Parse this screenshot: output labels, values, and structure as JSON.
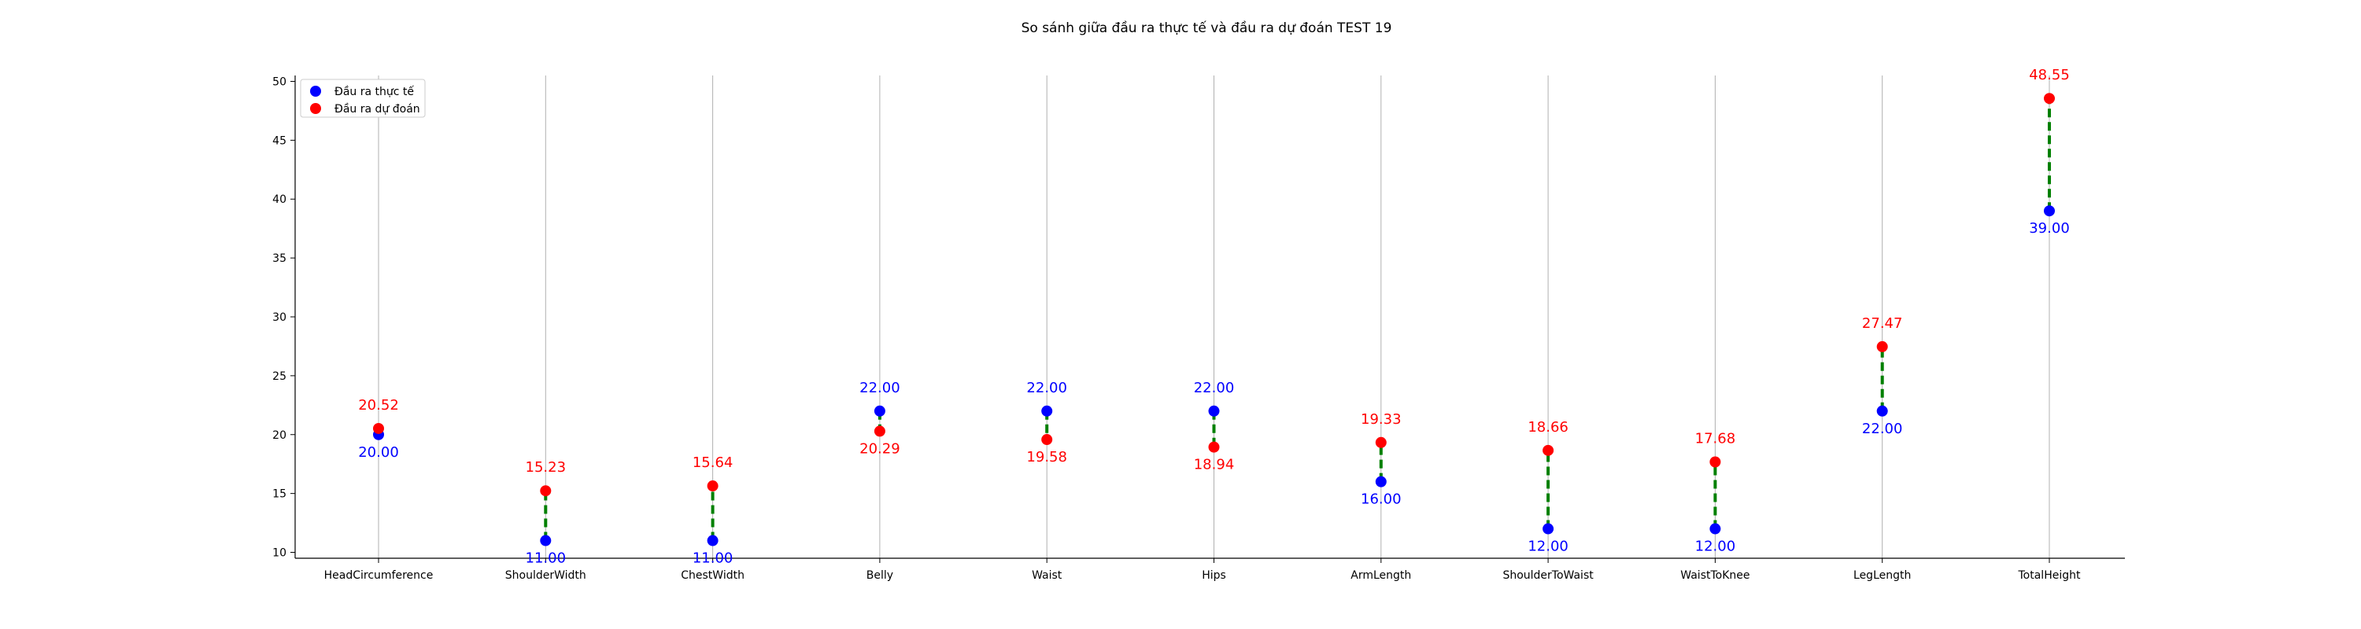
{
  "chart_data": {
    "type": "scatter",
    "title": "So sánh giữa đầu ra thực tế và đầu ra dự đoán TEST 19",
    "xlabel": "",
    "ylabel": "",
    "categories": [
      "HeadCircumference",
      "ShoulderWidth",
      "ChestWidth",
      "Belly",
      "Waist",
      "Hips",
      "ArmLength",
      "ShoulderToWaist",
      "WaistToKnee",
      "LegLength",
      "TotalHeight"
    ],
    "series": [
      {
        "name": "Đầu ra thực tế",
        "color": "#0000ff",
        "values": [
          20.0,
          11.0,
          11.0,
          22.0,
          22.0,
          22.0,
          16.0,
          12.0,
          12.0,
          22.0,
          39.0
        ]
      },
      {
        "name": "Đầu ra dự đoán",
        "color": "#ff0000",
        "values": [
          20.52,
          15.23,
          15.64,
          20.29,
          19.58,
          18.94,
          19.33,
          18.66,
          17.68,
          27.47,
          48.55
        ]
      }
    ],
    "connector_color": "#008000",
    "ylim": [
      9.5,
      50.5
    ],
    "yticks": [
      10,
      15,
      20,
      25,
      30,
      35,
      40,
      45,
      50
    ],
    "grid": "vertical",
    "legend": "top-left"
  }
}
